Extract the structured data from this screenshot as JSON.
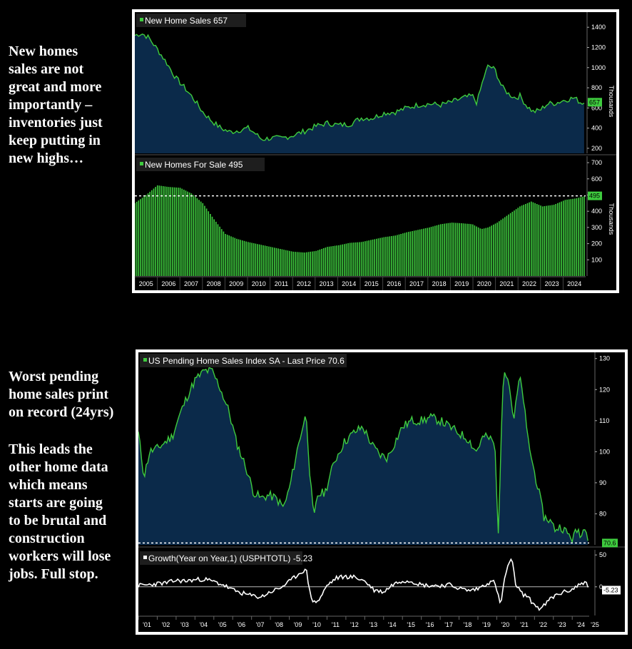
{
  "notes": {
    "top": "New homes\nsales are not\ngreat and more\nimportantly –\ninventories just\nkeep putting in\nnew highs…",
    "bottom_1": "Worst pending\nhome sales print\non record (24yrs)",
    "bottom_2": "This leads the\nother home data\nwhich means\nstarts are going\nto be brutal and\nconstruction\nworkers will lose\njobs. Full stop."
  },
  "colors": {
    "background": "#000000",
    "green": "#3ecb3e",
    "area_fill": "#0b2a4a",
    "white": "#ffffff",
    "dashed": "#ffffff",
    "axis_text": "#ffffff",
    "label_box": "#1e1e1e"
  },
  "chart_data": [
    {
      "type": "area",
      "panel": "top",
      "legend": "New Home Sales",
      "last_value": "657",
      "ylabel": "Thousands",
      "yticks": [
        200,
        400,
        600,
        800,
        1000,
        1200,
        1400
      ],
      "ylim": [
        150,
        1550
      ],
      "x_start": 2005.0,
      "x_end": 2024.9,
      "x": [
        2005.0,
        2005.3,
        2005.6,
        2006.0,
        2006.4,
        2006.8,
        2007.2,
        2007.6,
        2008.0,
        2008.4,
        2008.8,
        2009.2,
        2009.6,
        2010.0,
        2010.3,
        2010.6,
        2011.0,
        2011.5,
        2012.0,
        2012.5,
        2013.0,
        2013.5,
        2014.0,
        2014.5,
        2015.0,
        2015.5,
        2016.0,
        2016.5,
        2017.0,
        2017.5,
        2018.0,
        2018.5,
        2019.0,
        2019.5,
        2019.9,
        2020.1,
        2020.4,
        2020.6,
        2020.9,
        2021.2,
        2021.5,
        2021.8,
        2022.0,
        2022.3,
        2022.6,
        2022.9,
        2023.2,
        2023.6,
        2024.0,
        2024.4,
        2024.7,
        2024.9
      ],
      "values": [
        1320,
        1340,
        1300,
        1180,
        1050,
        900,
        800,
        690,
        560,
        470,
        400,
        360,
        380,
        400,
        350,
        290,
        300,
        300,
        330,
        370,
        420,
        450,
        430,
        440,
        500,
        500,
        550,
        560,
        600,
        630,
        640,
        630,
        660,
        700,
        720,
        650,
        900,
        1020,
        980,
        810,
        740,
        700,
        720,
        620,
        560,
        580,
        640,
        650,
        680,
        700,
        650,
        657
      ]
    },
    {
      "type": "bar",
      "panel": "middle",
      "legend": "New Homes For Sale",
      "last_value": "495",
      "ylabel": "Thousands",
      "yticks": [
        100,
        200,
        300,
        400,
        500,
        600,
        700
      ],
      "ylim": [
        0,
        740
      ],
      "x_start": 2005.0,
      "x_end": 2024.9,
      "xticks": [
        "2005",
        "2006",
        "2007",
        "2008",
        "2009",
        "2010",
        "2011",
        "2012",
        "2013",
        "2014",
        "2015",
        "2016",
        "2017",
        "2018",
        "2019",
        "2020",
        "2021",
        "2022",
        "2023",
        "2024"
      ],
      "reference_line": 495,
      "x": [
        2005.0,
        2005.5,
        2006.0,
        2006.5,
        2007.0,
        2007.5,
        2008.0,
        2008.5,
        2009.0,
        2009.5,
        2010.0,
        2010.5,
        2011.0,
        2011.5,
        2012.0,
        2012.5,
        2013.0,
        2013.5,
        2014.0,
        2014.5,
        2015.0,
        2015.5,
        2016.0,
        2016.5,
        2017.0,
        2017.5,
        2018.0,
        2018.5,
        2019.0,
        2019.5,
        2019.9,
        2020.3,
        2020.6,
        2021.0,
        2021.5,
        2022.0,
        2022.5,
        2023.0,
        2023.5,
        2024.0,
        2024.5,
        2024.9
      ],
      "values": [
        450,
        500,
        560,
        550,
        545,
        510,
        450,
        350,
        260,
        230,
        210,
        195,
        180,
        165,
        150,
        145,
        155,
        180,
        190,
        205,
        210,
        225,
        240,
        250,
        270,
        285,
        300,
        320,
        330,
        325,
        320,
        290,
        300,
        330,
        380,
        430,
        460,
        430,
        440,
        470,
        480,
        495
      ]
    },
    {
      "type": "area",
      "panel": "bottom-main",
      "legend": "US Pending Home Sales Index SA - Last Price",
      "last_value": "70.6",
      "yticks": [
        80,
        90,
        100,
        110,
        120,
        130
      ],
      "ylim": [
        70,
        132
      ],
      "x_start": 2001.0,
      "x_end": 2024.9,
      "reference_line": 70.6,
      "x": [
        2001.0,
        2001.3,
        2001.6,
        2002.0,
        2002.4,
        2002.8,
        2003.2,
        2003.6,
        2004.0,
        2004.5,
        2004.9,
        2005.3,
        2005.8,
        2006.2,
        2006.7,
        2007.1,
        2007.5,
        2007.9,
        2008.3,
        2008.7,
        2009.0,
        2009.4,
        2009.7,
        2009.9,
        2010.1,
        2010.3,
        2010.5,
        2010.9,
        2011.4,
        2011.9,
        2012.4,
        2012.9,
        2013.4,
        2013.8,
        2014.2,
        2014.6,
        2015.0,
        2015.5,
        2016.0,
        2016.5,
        2017.0,
        2017.5,
        2018.0,
        2018.5,
        2018.9,
        2019.3,
        2019.7,
        2019.9,
        2020.1,
        2020.3,
        2020.4,
        2020.6,
        2020.8,
        2020.9,
        2021.2,
        2021.4,
        2021.6,
        2021.9,
        2022.2,
        2022.5,
        2022.8,
        2023.1,
        2023.4,
        2023.7,
        2024.0,
        2024.3,
        2024.5,
        2024.7,
        2024.9
      ],
      "values": [
        106,
        92,
        100,
        101,
        103,
        105,
        112,
        118,
        123,
        126,
        126,
        121,
        113,
        103,
        95,
        87,
        85,
        86,
        85,
        82,
        88,
        100,
        108,
        112,
        92,
        78,
        86,
        87,
        97,
        103,
        106,
        108,
        102,
        99,
        98,
        103,
        108,
        110,
        110,
        111,
        110,
        108,
        106,
        104,
        100,
        105,
        104,
        102,
        72,
        120,
        127,
        124,
        115,
        110,
        124,
        118,
        106,
        96,
        88,
        79,
        78,
        75,
        76,
        74,
        72,
        75,
        73,
        77,
        70.6
      ]
    },
    {
      "type": "line",
      "panel": "bottom-sub",
      "legend": "Growth(Year on Year,1) (USPHTOTL)",
      "last_value": "-5.23",
      "yticks": [
        0,
        50
      ],
      "ylim": [
        -45,
        58
      ],
      "x_start": 2001.0,
      "x_end": 2024.9,
      "xticks": [
        "'01",
        "'02",
        "'03",
        "'04",
        "'05",
        "'06",
        "'07",
        "'08",
        "'09",
        "'10",
        "'11",
        "'12",
        "'13",
        "'14",
        "'15",
        "'16",
        "'17",
        "'18",
        "'19",
        "'20",
        "'21",
        "'22",
        "'23",
        "'24",
        "'25"
      ],
      "x": [
        2001.0,
        2001.5,
        2002.0,
        2002.5,
        2003.0,
        2003.5,
        2004.0,
        2004.5,
        2005.0,
        2005.5,
        2006.0,
        2006.5,
        2007.0,
        2007.5,
        2008.0,
        2008.5,
        2009.0,
        2009.4,
        2009.7,
        2009.9,
        2010.1,
        2010.3,
        2010.6,
        2011.0,
        2011.5,
        2012.0,
        2012.5,
        2013.0,
        2013.5,
        2014.0,
        2014.5,
        2015.0,
        2015.5,
        2016.0,
        2016.5,
        2017.0,
        2017.5,
        2018.0,
        2018.5,
        2019.0,
        2019.5,
        2019.9,
        2020.2,
        2020.4,
        2020.6,
        2020.8,
        2021.0,
        2021.3,
        2021.6,
        2022.0,
        2022.3,
        2022.5,
        2022.8,
        2023.2,
        2023.6,
        2024.0,
        2024.3,
        2024.5,
        2024.7,
        2024.9
      ],
      "values": [
        2,
        3,
        5,
        6,
        10,
        9,
        11,
        12,
        8,
        3,
        -5,
        -10,
        -14,
        -16,
        -8,
        -2,
        8,
        18,
        25,
        26,
        -10,
        -25,
        -20,
        2,
        14,
        16,
        15,
        9,
        -5,
        -8,
        4,
        10,
        9,
        3,
        2,
        2,
        3,
        -2,
        -6,
        -3,
        6,
        8,
        -30,
        10,
        35,
        42,
        5,
        -10,
        -15,
        -28,
        -35,
        -30,
        -20,
        -12,
        -8,
        -4,
        2,
        6,
        8,
        -5.23
      ]
    }
  ]
}
